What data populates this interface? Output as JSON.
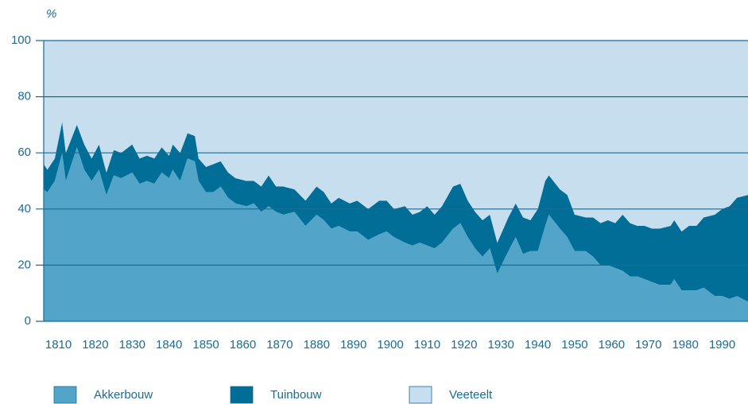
{
  "chart_data": {
    "type": "stacked_area",
    "y_axis_label": "%",
    "x": [
      1806,
      1807,
      1809,
      1811,
      1812,
      1815,
      1817,
      1819,
      1821,
      1823,
      1825,
      1827,
      1830,
      1832,
      1834,
      1836,
      1838,
      1840,
      1841,
      1843,
      1845,
      1847,
      1848,
      1850,
      1852,
      1854,
      1856,
      1858,
      1861,
      1863,
      1865,
      1867,
      1869,
      1871,
      1874,
      1877,
      1880,
      1882,
      1884,
      1886,
      1889,
      1891,
      1894,
      1897,
      1899,
      1901,
      1904,
      1906,
      1908,
      1910,
      1912,
      1914,
      1917,
      1919,
      1921,
      1923,
      1925,
      1927,
      1929,
      1932,
      1934,
      1936,
      1938,
      1940,
      1942,
      1943,
      1946,
      1948,
      1950,
      1953,
      1955,
      1957,
      1959,
      1961,
      1963,
      1965,
      1967,
      1969,
      1971,
      1973,
      1976,
      1977,
      1979,
      1981,
      1983,
      1985,
      1988,
      1990,
      1992,
      1994,
      1997
    ],
    "series": [
      {
        "name": "Akkerbouw",
        "color": "#52a5c9",
        "values": [
          47,
          46,
          50,
          60,
          50,
          62,
          54,
          50,
          54,
          45,
          52,
          51,
          53,
          49,
          50,
          49,
          53,
          51,
          54,
          50,
          58,
          57,
          50,
          46,
          46,
          48,
          44,
          42,
          41,
          42,
          39,
          41,
          39,
          38,
          39,
          34,
          38,
          36,
          33,
          34,
          32,
          32,
          29,
          31,
          32,
          30,
          28,
          27,
          28,
          27,
          26,
          28,
          33,
          35,
          30,
          26,
          23,
          26,
          17,
          25,
          30,
          24,
          25,
          25,
          34,
          38,
          33,
          30,
          25,
          25,
          23,
          20,
          20,
          19,
          18,
          16,
          16,
          15,
          14,
          13,
          13,
          15,
          11,
          11,
          11,
          12,
          9,
          9,
          8,
          9,
          7
        ]
      },
      {
        "name": "Tuinbouw",
        "color": "#006e96",
        "values": [
          9,
          8,
          8,
          11,
          10,
          8,
          9,
          8,
          9,
          8,
          9,
          9,
          10,
          9,
          9,
          9,
          9,
          8,
          9,
          10,
          9,
          9,
          8,
          9,
          10,
          9,
          9,
          9,
          9,
          8,
          9,
          11,
          9,
          10,
          8,
          9,
          10,
          10,
          9,
          10,
          10,
          11,
          11,
          12,
          11,
          10,
          13,
          11,
          11,
          14,
          12,
          13,
          15,
          14,
          13,
          13,
          13,
          12,
          11,
          12,
          12,
          13,
          11,
          15,
          16,
          14,
          14,
          15,
          13,
          12,
          14,
          15,
          16,
          16,
          20,
          19,
          18,
          19,
          19,
          20,
          21,
          21,
          21,
          23,
          23,
          25,
          29,
          31,
          33,
          35,
          38
        ]
      },
      {
        "name": "Veeteelt",
        "color": "#c6deee",
        "values": [
          44,
          46,
          42,
          29,
          40,
          30,
          37,
          42,
          37,
          47,
          39,
          40,
          37,
          42,
          41,
          42,
          38,
          41,
          37,
          40,
          33,
          34,
          42,
          45,
          44,
          43,
          47,
          49,
          50,
          50,
          52,
          48,
          52,
          52,
          53,
          57,
          52,
          54,
          58,
          56,
          58,
          57,
          60,
          57,
          57,
          60,
          59,
          62,
          61,
          59,
          62,
          59,
          52,
          51,
          57,
          61,
          64,
          62,
          72,
          63,
          58,
          63,
          64,
          60,
          50,
          48,
          53,
          55,
          62,
          63,
          63,
          65,
          64,
          65,
          62,
          65,
          66,
          66,
          67,
          67,
          66,
          64,
          68,
          66,
          66,
          63,
          62,
          60,
          59,
          56,
          55
        ]
      }
    ],
    "xlim": [
      1806,
      1997
    ],
    "xticks": [
      1810,
      1820,
      1830,
      1840,
      1850,
      1860,
      1870,
      1880,
      1890,
      1900,
      1910,
      1920,
      1930,
      1940,
      1950,
      1960,
      1970,
      1980,
      1990
    ],
    "ylim": [
      0,
      100
    ],
    "yticks": [
      0,
      20,
      40,
      60,
      80,
      100
    ],
    "grid": true,
    "grid_color": "#1b6b93",
    "text_color": "#1b6b93"
  }
}
